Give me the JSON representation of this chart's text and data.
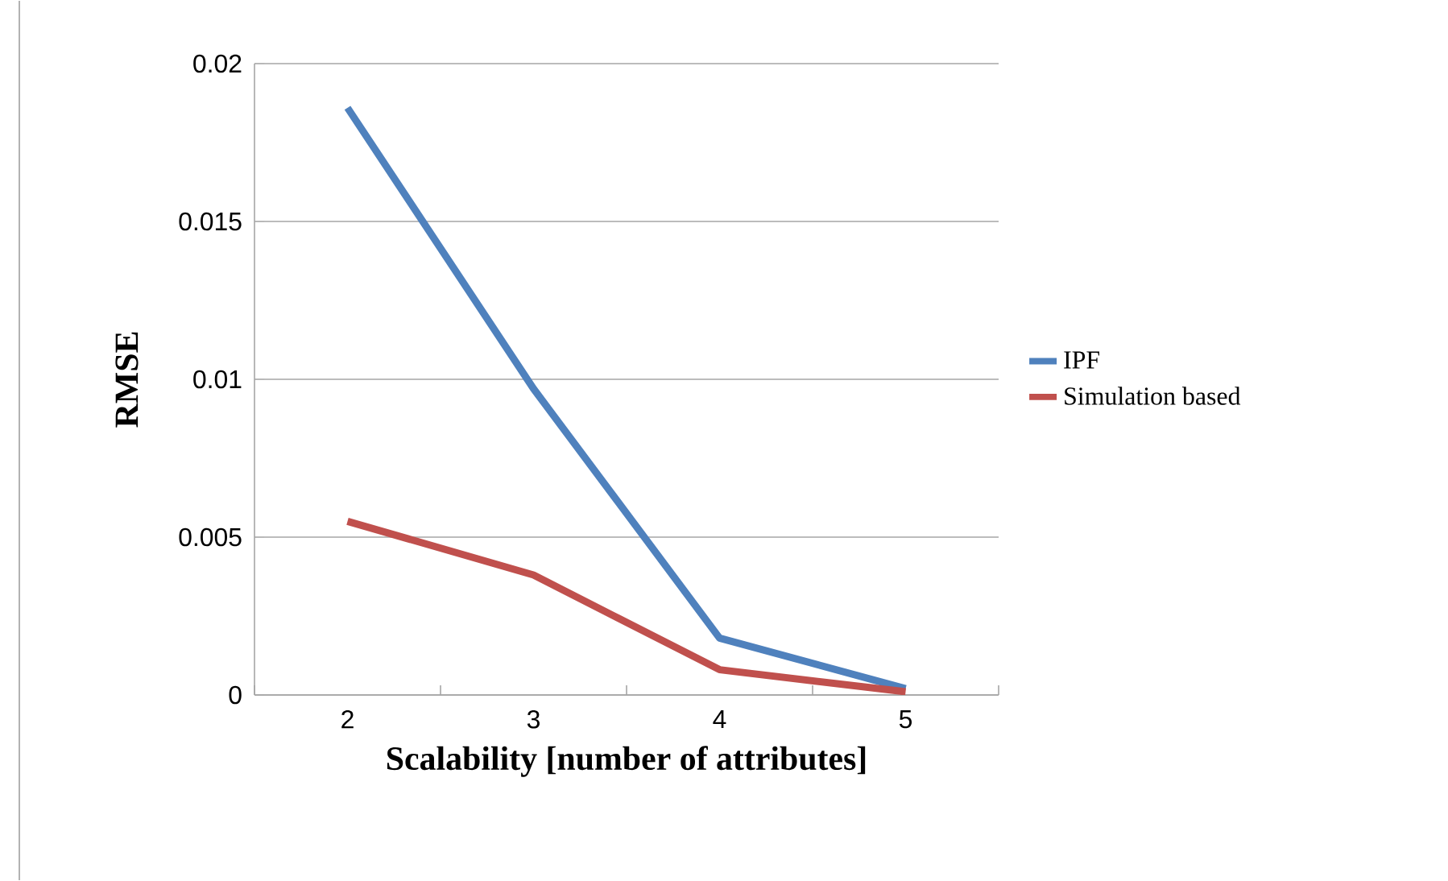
{
  "chart_data": {
    "type": "line",
    "xlabel": "Scalability [number of attributes]",
    "ylabel": "RMSE",
    "categories": [
      "2",
      "3",
      "4",
      "5"
    ],
    "series": [
      {
        "name": "IPF",
        "color": "#4f81bd",
        "values": [
          0.0186,
          0.0097,
          0.0018,
          0.0002
        ]
      },
      {
        "name": "Simulation based",
        "color": "#c0504d",
        "values": [
          0.0055,
          0.0038,
          0.0008,
          0.0001
        ]
      }
    ],
    "ylim": [
      0,
      0.02
    ],
    "yticks": [
      0,
      0.005,
      0.01,
      0.015,
      0.02
    ],
    "grid": "y",
    "legend": "right",
    "marker": "none",
    "line_style": "solid"
  }
}
